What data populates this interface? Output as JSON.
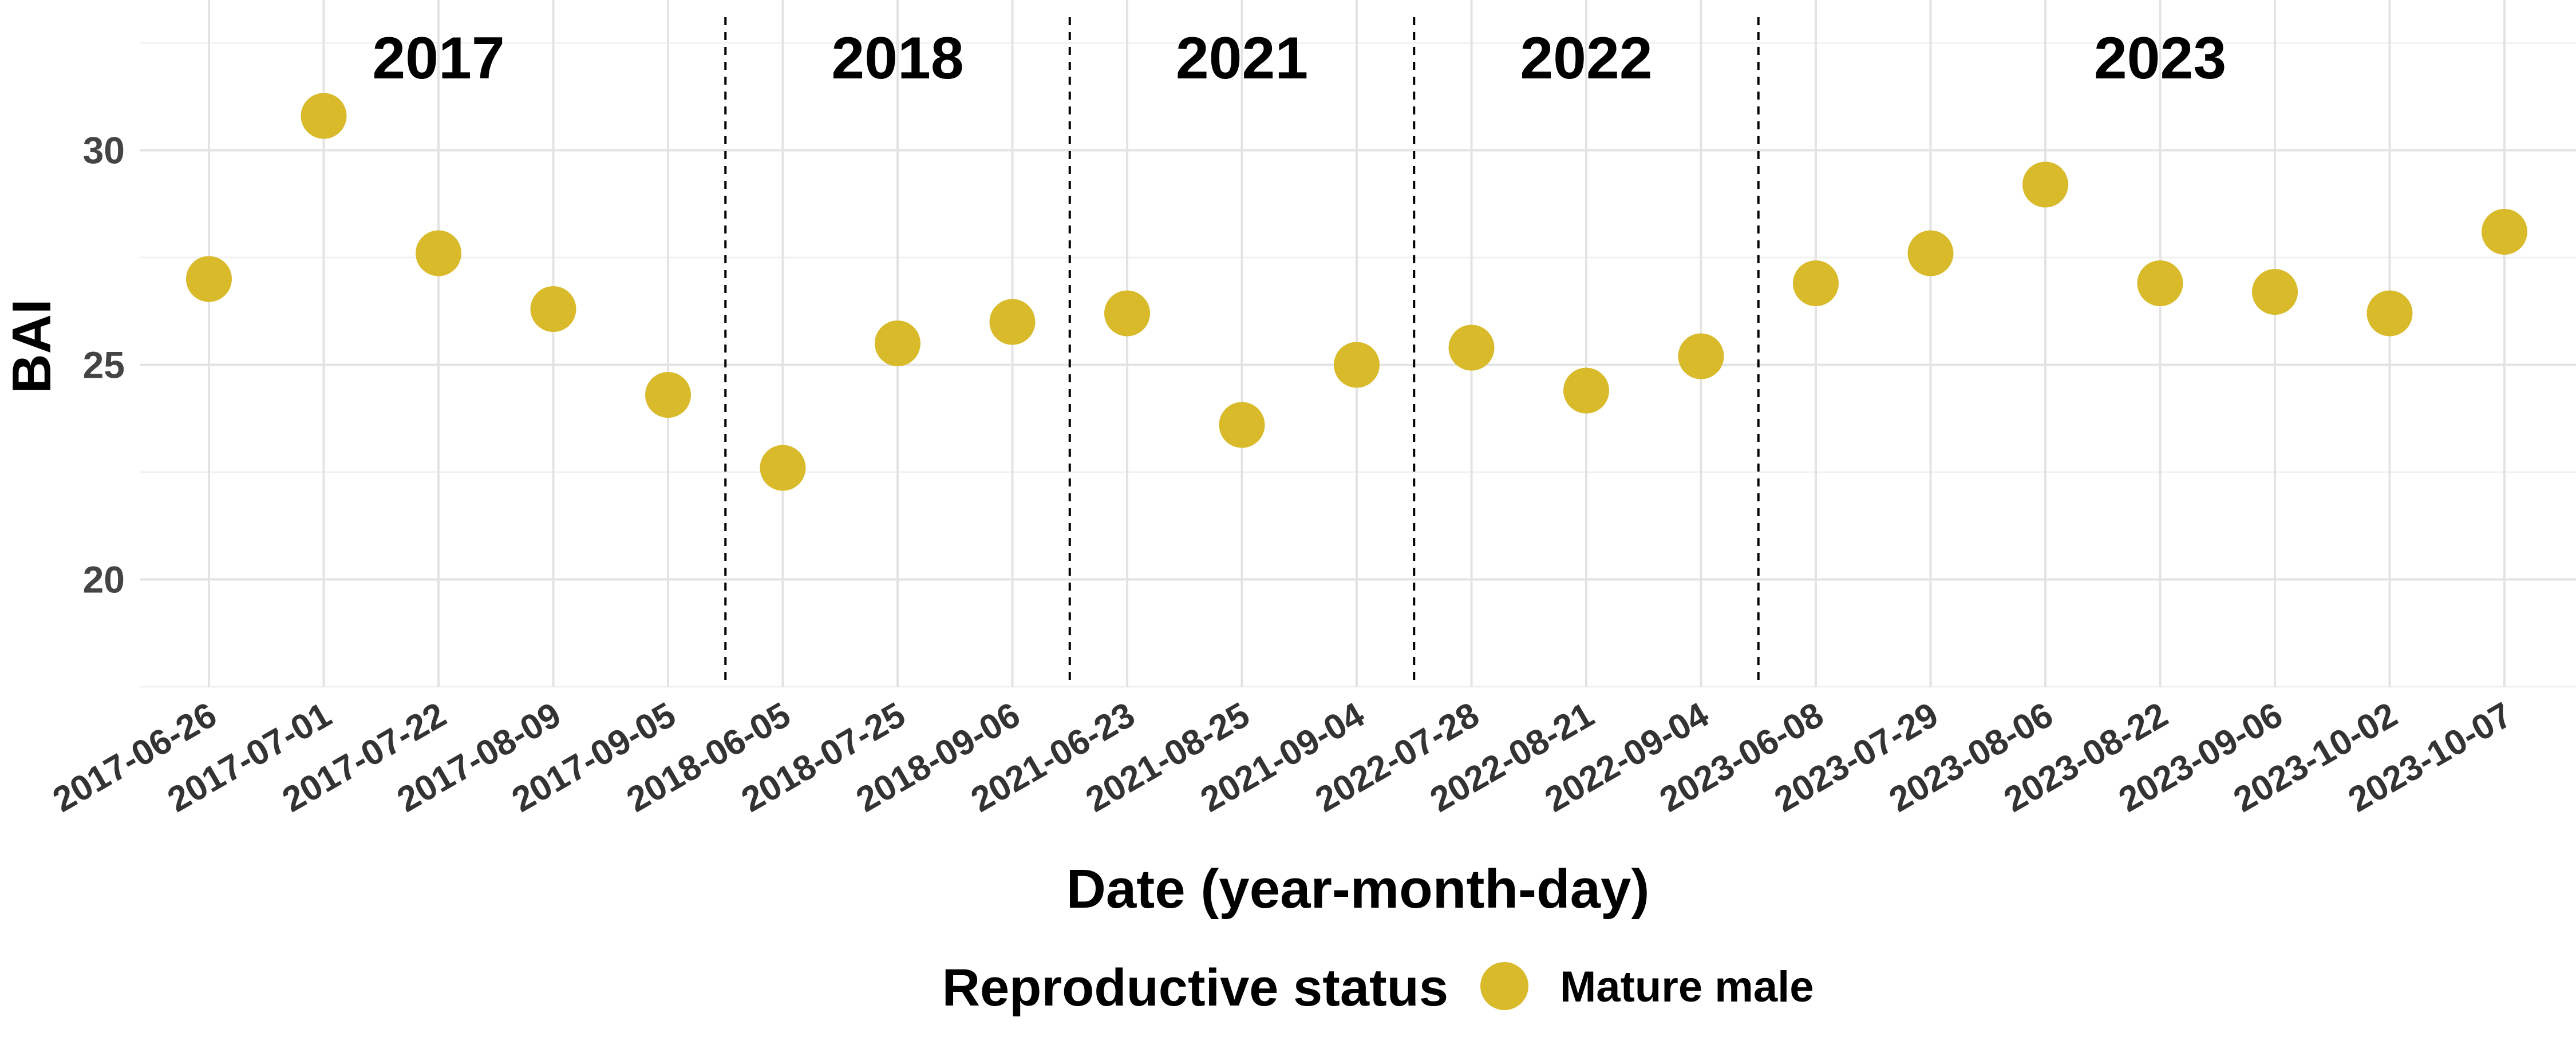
{
  "chart_data": {
    "type": "scatter",
    "title": "",
    "xlabel": "Date (year-month-day)",
    "ylabel": "BAI",
    "ylim": [
      17.5,
      33.5
    ],
    "yticks": [
      20,
      25,
      30
    ],
    "grid": true,
    "legend": {
      "position": "bottom",
      "title": "Reproductive status",
      "entries": [
        {
          "label": "Mature male",
          "color": "#d8ba2a"
        }
      ]
    },
    "series": [
      {
        "name": "Mature male",
        "color": "#d8ba2a",
        "x": [
          "2017-06-26",
          "2017-07-01",
          "2017-07-22",
          "2017-08-09",
          "2017-09-05",
          "2018-06-05",
          "2018-07-25",
          "2018-09-06",
          "2021-06-23",
          "2021-08-25",
          "2021-09-04",
          "2022-07-28",
          "2022-08-21",
          "2022-09-04",
          "2023-06-08",
          "2023-07-29",
          "2023-08-06",
          "2023-08-22",
          "2023-09-06",
          "2023-10-02",
          "2023-10-07"
        ],
        "y": [
          27.0,
          30.8,
          27.6,
          26.3,
          24.3,
          22.6,
          25.5,
          26.0,
          26.2,
          23.6,
          25.0,
          25.4,
          24.4,
          25.2,
          26.9,
          27.6,
          29.2,
          26.9,
          26.7,
          26.2,
          28.1
        ]
      }
    ],
    "facets": [
      {
        "label": "2017",
        "count": 5
      },
      {
        "label": "2018",
        "count": 3
      },
      {
        "label": "2021",
        "count": 3
      },
      {
        "label": "2022",
        "count": 3
      },
      {
        "label": "2023",
        "count": 7
      }
    ]
  }
}
